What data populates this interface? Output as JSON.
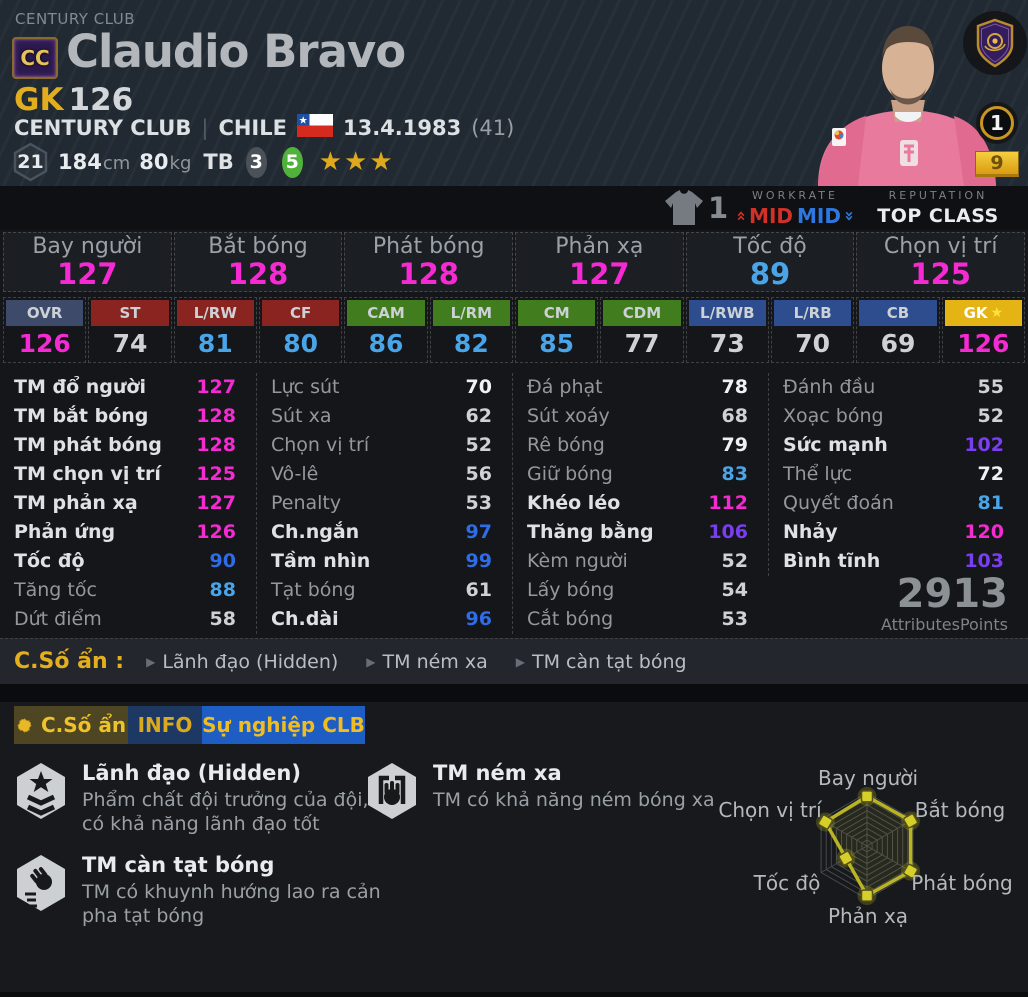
{
  "header": {
    "eyebrow": "CENTURY CLUB",
    "badge": "CC",
    "name": "Claudio Bravo",
    "position": "GK",
    "overall": "126",
    "club": "CENTURY CLUB",
    "divider": "|",
    "nation": "CHILE",
    "birthdate": "13.4.1983",
    "age": "(41)",
    "season": "21",
    "height_value": "184",
    "height_unit": "cm",
    "weight_value": "80",
    "weight_unit": "kg",
    "foot_label": "TB",
    "left_foot": "3",
    "right_foot": "5",
    "star_rating": "★★★",
    "coin_value": "1",
    "plate_value": "9"
  },
  "band": {
    "shirt_count": "1",
    "workrate_label": "WORKRATE",
    "workrate_high": "MID",
    "workrate_low": "MID",
    "reputation_label": "REPUTATION",
    "reputation_value": "TOP CLASS"
  },
  "main_stats": [
    {
      "label": "Bay người",
      "value": "127"
    },
    {
      "label": "Bắt bóng",
      "value": "128"
    },
    {
      "label": "Phát bóng",
      "value": "128"
    },
    {
      "label": "Phản xạ",
      "value": "127"
    },
    {
      "label": "Tốc độ",
      "value": "89"
    },
    {
      "label": "Chọn vị trí",
      "value": "125"
    }
  ],
  "positions": [
    {
      "code": "OVR",
      "value": "126",
      "group": "ovr"
    },
    {
      "code": "ST",
      "value": "74",
      "group": "att"
    },
    {
      "code": "L/RW",
      "value": "81",
      "group": "att"
    },
    {
      "code": "CF",
      "value": "80",
      "group": "att"
    },
    {
      "code": "CAM",
      "value": "86",
      "group": "mid"
    },
    {
      "code": "L/RM",
      "value": "82",
      "group": "mid"
    },
    {
      "code": "CM",
      "value": "85",
      "group": "mid"
    },
    {
      "code": "CDM",
      "value": "77",
      "group": "mid"
    },
    {
      "code": "L/RWB",
      "value": "73",
      "group": "def"
    },
    {
      "code": "L/RB",
      "value": "70",
      "group": "def"
    },
    {
      "code": "CB",
      "value": "69",
      "group": "def"
    },
    {
      "code": "GK",
      "value": "126",
      "group": "gk",
      "star": true
    }
  ],
  "attributes": {
    "columns": [
      [
        {
          "label": "TM đổ người",
          "value": "127",
          "hl": true
        },
        {
          "label": "TM bắt bóng",
          "value": "128",
          "hl": true
        },
        {
          "label": "TM phát bóng",
          "value": "128",
          "hl": true
        },
        {
          "label": "TM chọn vị trí",
          "value": "125",
          "hl": true
        },
        {
          "label": "TM phản xạ",
          "value": "127",
          "hl": true
        },
        {
          "label": "Phản ứng",
          "value": "126",
          "hl": true
        },
        {
          "label": "Tốc độ",
          "value": "90",
          "hl": true
        },
        {
          "label": "Tăng tốc",
          "value": "88",
          "hl": false
        },
        {
          "label": "Dứt điểm",
          "value": "58",
          "hl": false
        }
      ],
      [
        {
          "label": "Lực sút",
          "value": "70",
          "hl": false
        },
        {
          "label": "Sút xa",
          "value": "62",
          "hl": false
        },
        {
          "label": "Chọn vị trí",
          "value": "52",
          "hl": false
        },
        {
          "label": "Vô-lê",
          "value": "56",
          "hl": false
        },
        {
          "label": "Penalty",
          "value": "53",
          "hl": false
        },
        {
          "label": "Ch.ngắn",
          "value": "97",
          "hl": true
        },
        {
          "label": "Tầm nhìn",
          "value": "99",
          "hl": true
        },
        {
          "label": "Tạt bóng",
          "value": "61",
          "hl": false
        },
        {
          "label": "Ch.dài",
          "value": "96",
          "hl": true
        }
      ],
      [
        {
          "label": "Đá phạt",
          "value": "78",
          "hl": false
        },
        {
          "label": "Sút xoáy",
          "value": "68",
          "hl": false
        },
        {
          "label": "Rê bóng",
          "value": "79",
          "hl": false
        },
        {
          "label": "Giữ bóng",
          "value": "83",
          "hl": false
        },
        {
          "label": "Khéo léo",
          "value": "112",
          "hl": true
        },
        {
          "label": "Thăng bằng",
          "value": "106",
          "hl": true
        },
        {
          "label": "Kèm người",
          "value": "52",
          "hl": false
        },
        {
          "label": "Lấy bóng",
          "value": "54",
          "hl": false
        },
        {
          "label": "Cắt bóng",
          "value": "53",
          "hl": false
        }
      ],
      [
        {
          "label": "Đánh đầu",
          "value": "55",
          "hl": false
        },
        {
          "label": "Xoạc bóng",
          "value": "52",
          "hl": false
        },
        {
          "label": "Sức mạnh",
          "value": "102",
          "hl": true
        },
        {
          "label": "Thể lực",
          "value": "72",
          "hl": false
        },
        {
          "label": "Quyết đoán",
          "value": "81",
          "hl": false
        },
        {
          "label": "Nhảy",
          "value": "120",
          "hl": true
        },
        {
          "label": "Bình tĩnh",
          "value": "103",
          "hl": true
        }
      ]
    ]
  },
  "totals": {
    "points": "2913",
    "label": "AttributesPoints"
  },
  "hidden": {
    "title": "C.Số ẩn :",
    "items": [
      "Lãnh đạo (Hidden)",
      "TM ném xa",
      "TM càn tạt bóng"
    ]
  },
  "tabs": [
    {
      "label": "C.Số ẩn",
      "active": true
    },
    {
      "label": "INFO",
      "active": false
    },
    {
      "label": "Sự nghiệp CLB",
      "active": false
    }
  ],
  "traits": [
    {
      "name": "Lãnh đạo (Hidden)",
      "desc": "Phẩm chất đội trưởng của đội, có khả năng lãnh đạo tốt",
      "icon": "captain-armband-icon",
      "col": 0
    },
    {
      "name": "TM ném xa",
      "desc": "TM có khả năng ném bóng xa",
      "icon": "gk-long-throw-icon",
      "col": 1
    },
    {
      "name": "TM càn tạt bóng",
      "desc": "TM có khuynh hướng lao ra cản pha tạt bóng",
      "icon": "gk-rush-cross-icon",
      "col": 0
    }
  ],
  "chart_data": {
    "type": "radar",
    "categories": [
      "Bay người",
      "Bắt bóng",
      "Phát bóng",
      "Phản xạ",
      "Tốc độ",
      "Chọn vị trí"
    ],
    "values": [
      127,
      128,
      128,
      127,
      89,
      125
    ],
    "max": 128,
    "rings": 9,
    "grid": true,
    "line_color": "#b9b424"
  },
  "colors": {
    "magenta": "#f62ad2",
    "purple": "#7a3ef2",
    "blue": "#2e6ce8",
    "light_blue": "#49a4e8",
    "white": "#f0f1f2",
    "gray": "#cfd1d4",
    "gold": "#e4af1e",
    "workrate_red": "#d23128",
    "workrate_blue": "#2e77e0",
    "radar_line": "#b9b424"
  }
}
